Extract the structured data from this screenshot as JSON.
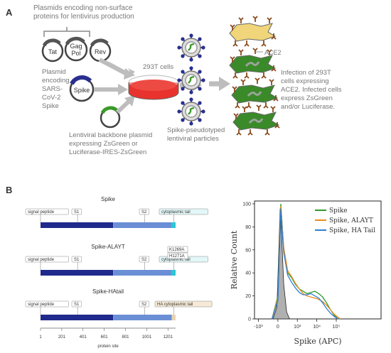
{
  "panel_a": {
    "letter": "A",
    "caption_non_surface": [
      "Plasmids encoding non-surface",
      "proteins for lentivirus production"
    ],
    "plasmids": [
      "Tat",
      "Gag",
      "Pol",
      "Rev",
      "Spike"
    ],
    "caption_spike_plasmid": [
      "Plasmid",
      "encoding",
      "SARS-",
      "CoV-2",
      "Spike"
    ],
    "cells_label": "293T cells",
    "caption_backbone": [
      "Lentiviral backbone plasmid",
      "expressing ZsGreen or",
      "Luciferase-IRES-ZsGreen"
    ],
    "caption_particles": [
      "Spike-pseudotyped",
      "lentiviral particles"
    ],
    "ace2_label": "ACE2",
    "caption_infection": [
      "Infection of 293T",
      "cells expressing",
      "ACE2. Infected cells",
      "express ZsGreen",
      "and/or Luciferase."
    ],
    "colors": {
      "spike": "#2a2f8f",
      "green_cell": "#3a8a2a",
      "yellow_cell": "#f0d57a",
      "ace2": "#8b4a1c",
      "dish": "#e8322d",
      "arrow": "#bdbdbd"
    }
  },
  "panel_b": {
    "letter": "B",
    "constructs": [
      {
        "title": "Spike",
        "labels": [
          "signal peptide",
          "S1",
          "S2",
          "cytoplasmic tail"
        ],
        "extra": []
      },
      {
        "title": "Spike-ALAYT",
        "labels": [
          "signal peptide",
          "S1",
          "S2",
          "cytoplasmic tail"
        ],
        "extra": [
          "K1269A",
          "H1271A"
        ]
      },
      {
        "title": "Spike-HAtail",
        "labels": [
          "signal peptide",
          "S1",
          "S2",
          "HA cytoplasmic tail"
        ],
        "extra": []
      }
    ],
    "axis_ticks": [
      "1",
      "201",
      "401",
      "601",
      "801",
      "1001",
      "1201"
    ],
    "axis_label": "protein site",
    "colors": {
      "s1": "#1f2a8c",
      "s2": "#6b8fd6",
      "tail": "#27c9d4",
      "ha_tail": "#e9d3b0"
    }
  },
  "chart_data": {
    "type": "line",
    "title": "",
    "xlabel": "Spike (APC)",
    "ylabel": "Relative Count",
    "ylim": [
      0,
      100
    ],
    "x_ticks": [
      "-10³",
      "0",
      "10³",
      "10⁴",
      "10⁵"
    ],
    "y_ticks": [
      "0",
      "20",
      "40",
      "60",
      "80",
      "100"
    ],
    "legend_position": "top-right",
    "series": [
      {
        "name": "Spike",
        "color": "#2e9a2e",
        "x": [
          -0.3,
          0,
          0.15,
          0.3,
          0.5,
          0.7,
          0.9,
          1.1,
          1.3,
          1.5,
          1.7,
          1.9,
          2.1,
          2.3,
          2.5,
          2.7,
          2.9,
          3.1
        ],
        "values": [
          0,
          20,
          100,
          60,
          40,
          36,
          30,
          26,
          24,
          22,
          23,
          24,
          22,
          19,
          14,
          8,
          3,
          0
        ]
      },
      {
        "name": "Spike, ALAYT",
        "color": "#f08a1c",
        "x": [
          -0.3,
          0,
          0.15,
          0.3,
          0.5,
          0.7,
          0.9,
          1.1,
          1.3,
          1.5,
          1.7,
          1.9,
          2.1,
          2.3,
          2.5,
          2.7,
          2.9,
          3.2
        ],
        "values": [
          0,
          18,
          98,
          62,
          42,
          37,
          31,
          26,
          22,
          20,
          19,
          18,
          17,
          15,
          12,
          8,
          4,
          0
        ]
      },
      {
        "name": "Spike, HA Tail",
        "color": "#2f7fd1",
        "x": [
          -0.3,
          0,
          0.15,
          0.3,
          0.5,
          0.7,
          0.9,
          1.1,
          1.3,
          1.5,
          1.7,
          1.9,
          2.1,
          2.3,
          2.5,
          2.7,
          2.9,
          3.1
        ],
        "values": [
          0,
          16,
          96,
          58,
          38,
          32,
          27,
          23,
          21,
          21,
          22,
          20,
          18,
          14,
          9,
          5,
          2,
          0
        ]
      },
      {
        "name": "",
        "color": "#9a9a9a",
        "fill": true,
        "x": [
          -0.25,
          -0.05,
          0.05,
          0.12,
          0.2,
          0.3,
          0.45,
          0.6
        ],
        "values": [
          0,
          10,
          60,
          96,
          70,
          30,
          6,
          0
        ]
      }
    ]
  }
}
